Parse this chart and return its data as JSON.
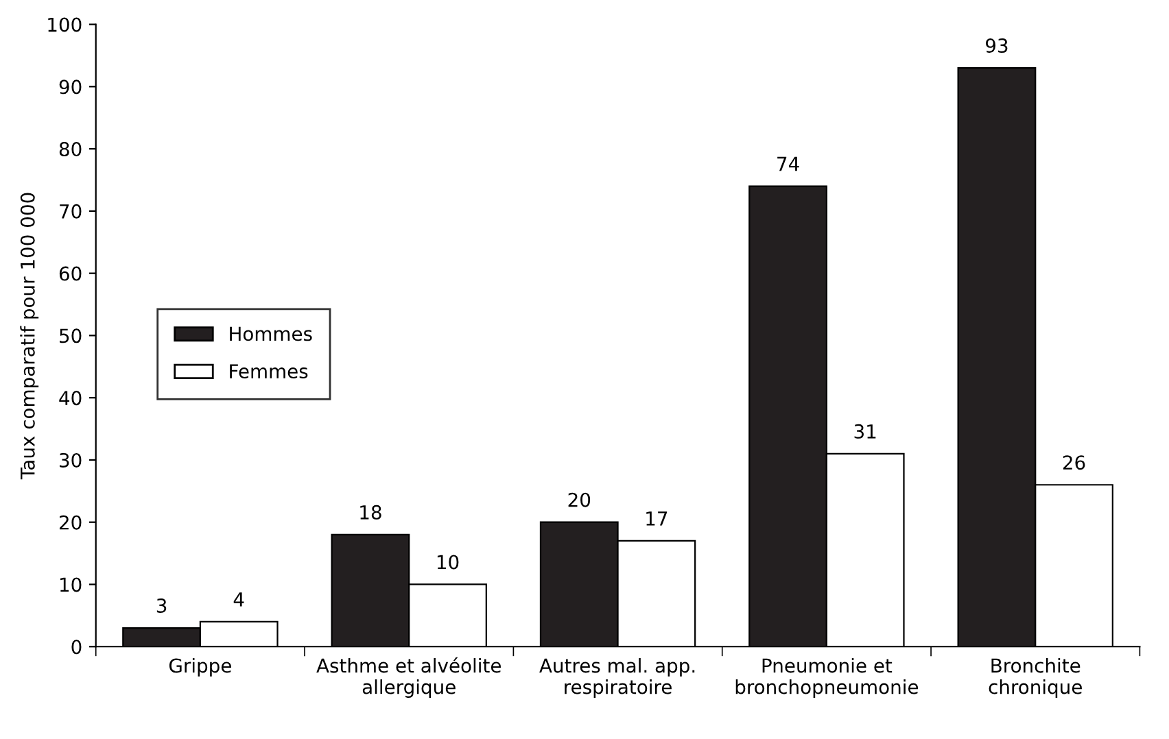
{
  "chart_data": {
    "type": "bar",
    "ylabel": "Taux comparatif pour 100 000",
    "categories": [
      "Grippe",
      "Asthme et alvéolite\nallergique",
      "Autres mal. app.\nrespiratoire",
      "Pneumonie et\nbronchopneumonie",
      "Bronchite\nchronique"
    ],
    "series": [
      {
        "name": "Hommes",
        "color": "#231f20",
        "values": [
          3,
          18,
          20,
          74,
          93
        ]
      },
      {
        "name": "Femmes",
        "color": "#ffffff",
        "values": [
          4,
          10,
          17,
          31,
          26
        ]
      }
    ],
    "ylim": [
      0,
      100
    ],
    "yticks": [
      0,
      10,
      20,
      30,
      40,
      50,
      60,
      70,
      80,
      90,
      100
    ],
    "data_labels": true,
    "grid": false,
    "legend": "left"
  }
}
